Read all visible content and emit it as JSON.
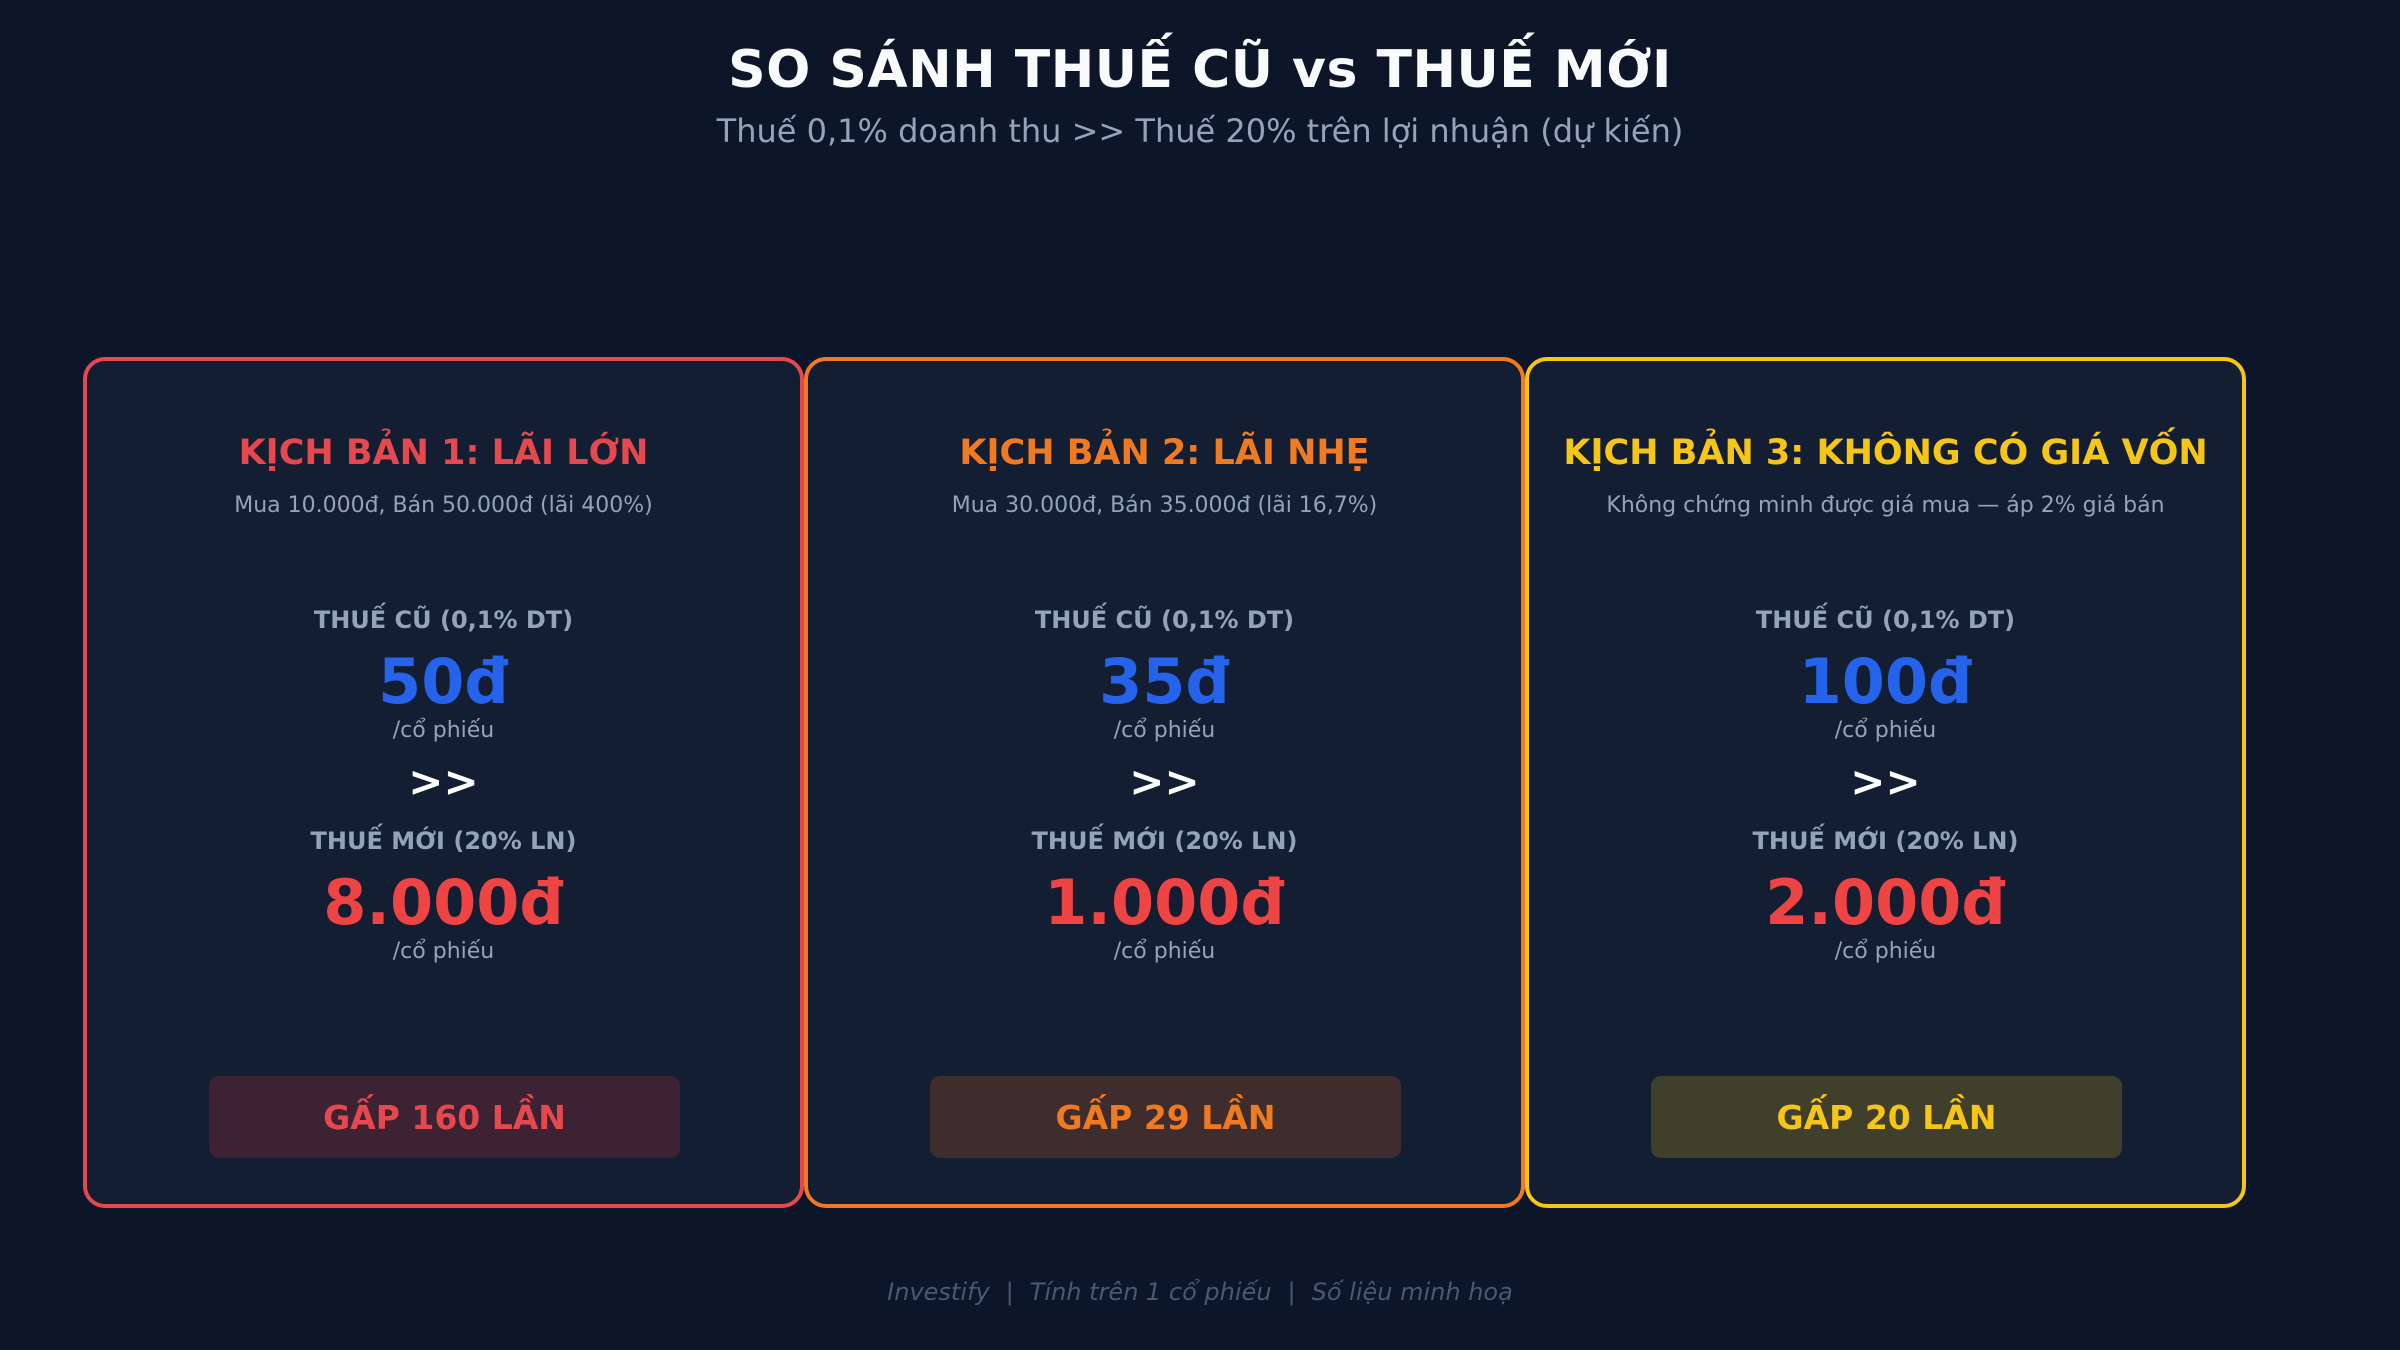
{
  "header": {
    "title": "SO SÁNH THUẾ CŨ vs THUẾ MỚI",
    "subtitle": "Thuế 0,1% doanh thu  >>  Thuế 20% trên lợi nhuận (dự kiến)"
  },
  "cards": [
    {
      "title": "KỊCH BẢN 1: LÃI LỚN",
      "description": "Mua 10.000đ, Bán 50.000đ (lãi 400%)",
      "old_label": "THUẾ CŨ (0,1% DT)",
      "old_amount": "50đ",
      "old_unit": "/cổ phiếu",
      "arrow": ">>",
      "new_label": "THUẾ MỚI (20% LN)",
      "new_amount": "8.000đ",
      "new_unit": "/cổ phiếu",
      "badge": "GẤP 160 LẦN",
      "accent": "#e5484d",
      "badge_bg": "#3d2233"
    },
    {
      "title": "KỊCH BẢN 2: LÃI NHẸ",
      "description": "Mua 30.000đ, Bán 35.000đ (lãi 16,7%)",
      "old_label": "THUẾ CŨ (0,1% DT)",
      "old_amount": "35đ",
      "old_unit": "/cổ phiếu",
      "arrow": ">>",
      "new_label": "THUẾ MỚI (20% LN)",
      "new_amount": "1.000đ",
      "new_unit": "/cổ phiếu",
      "badge": "GẤP 29 LẦN",
      "accent": "#f07a22",
      "badge_bg": "#3f2c2c"
    },
    {
      "title": "KỊCH BẢN 3: KHÔNG CÓ GIÁ VỐN",
      "description": "Không chứng minh được giá mua — áp 2% giá bán",
      "old_label": "THUẾ CŨ (0,1% DT)",
      "old_amount": "100đ",
      "old_unit": "/cổ phiếu",
      "arrow": ">>",
      "new_label": "THUẾ MỚI (20% LN)",
      "new_amount": "2.000đ",
      "new_unit": "/cổ phiếu",
      "badge": "GẤP 20 LẦN",
      "accent": "#f5c518",
      "badge_bg": "#3f3f2c"
    }
  ],
  "footer": {
    "brand": "Investify",
    "note1": "Tính trên 1 cổ phiếu",
    "note2": "Số liệu minh hoạ",
    "separator": "|"
  }
}
